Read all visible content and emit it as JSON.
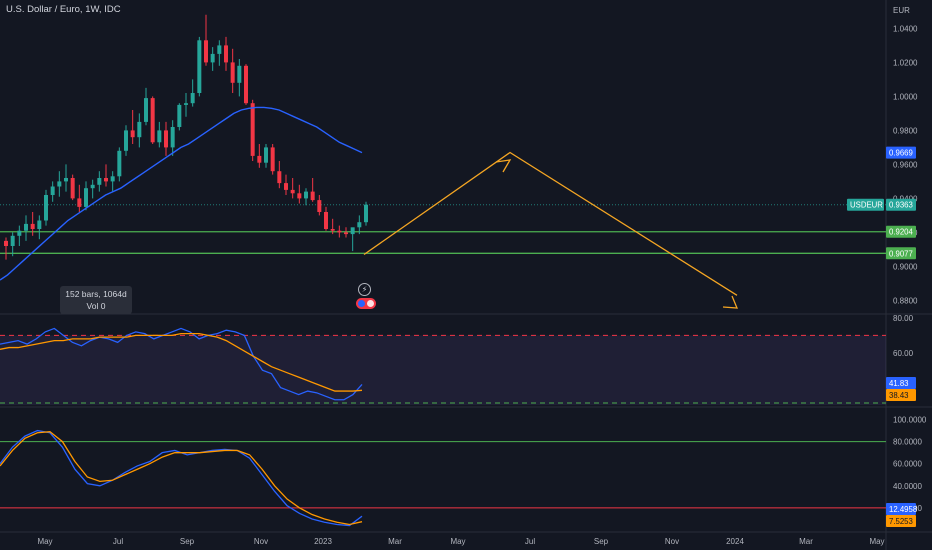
{
  "header": {
    "title": "U.S. Dollar / Euro, 1W, IDC",
    "currency": "EUR"
  },
  "tooltip": {
    "bars": "152 bars, 1064d",
    "vol": "Vol 0"
  },
  "colors": {
    "background": "#131722",
    "up": "#26a69a",
    "down": "#f23645",
    "sma": "#2962ff",
    "rsi": "#2962ff",
    "rsi_ma": "#ff9800",
    "stoch_k": "#2962ff",
    "stoch_d": "#ff9800",
    "support": "#4caf50",
    "projection": "#f5a623",
    "obos": "#f23645"
  },
  "badges": {
    "sma_value": "0.9669",
    "symbol": "USDEUR",
    "last_price": "0.9363",
    "support1": "0.9204",
    "support2": "0.9077",
    "rsi": "41.83",
    "rsi_ma": "38.43",
    "stoch_k": "12.4958",
    "stoch_d": "7.5253"
  },
  "chart_data": [
    {
      "type": "candlestick",
      "title": "U.S. Dollar / Euro, 1W, IDC",
      "price_axis_ticks": [
        "1.0400",
        "1.0200",
        "1.0000",
        "0.9800",
        "0.9600",
        "0.9400",
        "0.9200",
        "0.9000",
        "0.8800"
      ],
      "time_axis_ticks": [
        "May",
        "Jul",
        "Sep",
        "Nov",
        "2023",
        "Mar",
        "May",
        "Jul",
        "Sep",
        "Nov",
        "2024",
        "Mar",
        "May"
      ],
      "ylim": [
        0.872,
        1.052
      ],
      "ohlc": [
        [
          0.915,
          0.917,
          0.904,
          0.912
        ],
        [
          0.912,
          0.92,
          0.906,
          0.918
        ],
        [
          0.918,
          0.924,
          0.912,
          0.921
        ],
        [
          0.921,
          0.93,
          0.915,
          0.925
        ],
        [
          0.925,
          0.932,
          0.918,
          0.922
        ],
        [
          0.922,
          0.93,
          0.916,
          0.927
        ],
        [
          0.927,
          0.945,
          0.924,
          0.942
        ],
        [
          0.942,
          0.95,
          0.938,
          0.947
        ],
        [
          0.947,
          0.956,
          0.941,
          0.95
        ],
        [
          0.95,
          0.96,
          0.944,
          0.952
        ],
        [
          0.952,
          0.954,
          0.939,
          0.94
        ],
        [
          0.94,
          0.948,
          0.932,
          0.935
        ],
        [
          0.935,
          0.95,
          0.933,
          0.946
        ],
        [
          0.946,
          0.951,
          0.94,
          0.948
        ],
        [
          0.948,
          0.956,
          0.944,
          0.952
        ],
        [
          0.952,
          0.96,
          0.947,
          0.95
        ],
        [
          0.95,
          0.956,
          0.944,
          0.953
        ],
        [
          0.953,
          0.97,
          0.95,
          0.968
        ],
        [
          0.968,
          0.983,
          0.965,
          0.98
        ],
        [
          0.98,
          0.992,
          0.972,
          0.976
        ],
        [
          0.976,
          0.99,
          0.97,
          0.985
        ],
        [
          0.985,
          1.005,
          0.983,
          0.999
        ],
        [
          0.999,
          1.0,
          0.972,
          0.973
        ],
        [
          0.973,
          0.985,
          0.97,
          0.98
        ],
        [
          0.98,
          0.985,
          0.965,
          0.97
        ],
        [
          0.97,
          0.986,
          0.965,
          0.982
        ],
        [
          0.982,
          0.996,
          0.98,
          0.995
        ],
        [
          0.995,
          1.002,
          0.988,
          0.996
        ],
        [
          0.996,
          1.01,
          0.994,
          1.002
        ],
        [
          1.002,
          1.035,
          1.0,
          1.033
        ],
        [
          1.033,
          1.048,
          1.018,
          1.02
        ],
        [
          1.02,
          1.029,
          1.015,
          1.025
        ],
        [
          1.025,
          1.033,
          1.018,
          1.03
        ],
        [
          1.03,
          1.035,
          1.015,
          1.02
        ],
        [
          1.02,
          1.028,
          1.002,
          1.008
        ],
        [
          1.008,
          1.022,
          1.0,
          1.018
        ],
        [
          1.018,
          1.019,
          0.995,
          0.996
        ],
        [
          0.996,
          0.998,
          0.962,
          0.965
        ],
        [
          0.965,
          0.972,
          0.958,
          0.961
        ],
        [
          0.961,
          0.972,
          0.958,
          0.97
        ],
        [
          0.97,
          0.972,
          0.954,
          0.956
        ],
        [
          0.956,
          0.962,
          0.946,
          0.949
        ],
        [
          0.949,
          0.954,
          0.942,
          0.945
        ],
        [
          0.945,
          0.952,
          0.94,
          0.943
        ],
        [
          0.943,
          0.948,
          0.937,
          0.94
        ],
        [
          0.94,
          0.946,
          0.936,
          0.944
        ],
        [
          0.944,
          0.952,
          0.938,
          0.939
        ],
        [
          0.939,
          0.942,
          0.93,
          0.932
        ],
        [
          0.932,
          0.935,
          0.921,
          0.922
        ],
        [
          0.922,
          0.928,
          0.919,
          0.921
        ],
        [
          0.921,
          0.924,
          0.917,
          0.92
        ],
        [
          0.92,
          0.923,
          0.917,
          0.919
        ],
        [
          0.919,
          0.922,
          0.909,
          0.923
        ],
        [
          0.923,
          0.93,
          0.919,
          0.926
        ],
        [
          0.926,
          0.938,
          0.924,
          0.9363
        ]
      ],
      "sma": [
        0.892,
        0.895,
        0.899,
        0.903,
        0.907,
        0.911,
        0.915,
        0.919,
        0.923,
        0.927,
        0.93,
        0.933,
        0.936,
        0.939,
        0.942,
        0.944,
        0.946,
        0.949,
        0.952,
        0.955,
        0.958,
        0.961,
        0.964,
        0.967,
        0.97,
        0.972,
        0.975,
        0.978,
        0.981,
        0.984,
        0.987,
        0.99,
        0.992,
        0.993,
        0.9935,
        0.9935,
        0.993,
        0.992,
        0.99,
        0.988,
        0.986,
        0.984,
        0.982,
        0.979,
        0.976,
        0.973,
        0.971,
        0.969,
        0.9669
      ],
      "support_levels": [
        0.9204,
        0.9077
      ],
      "projection": [
        [
          0.907,
          0.967
        ],
        [
          0.967,
          0.883
        ]
      ]
    },
    {
      "type": "line",
      "name": "RSI",
      "axis_ticks": [
        "80.00",
        "60.00"
      ],
      "ylim": [
        30,
        80
      ],
      "bands": [
        70,
        30
      ],
      "series": [
        {
          "values": [
            65,
            66,
            67,
            65,
            68,
            72,
            74,
            70,
            66,
            64,
            67,
            69,
            68,
            66,
            70,
            72,
            71,
            68,
            70,
            72,
            74,
            72,
            68,
            70,
            71,
            73,
            72,
            70,
            58,
            50,
            48,
            40,
            38,
            36,
            38,
            37,
            35,
            33,
            33,
            36,
            41.83
          ]
        },
        {
          "values": [
            62,
            63,
            63,
            64,
            65,
            66,
            67,
            67,
            68,
            68,
            68,
            69,
            69,
            69,
            69,
            70,
            70,
            70,
            70,
            70,
            71,
            71,
            71,
            70,
            69,
            67,
            64,
            61,
            58,
            55,
            52,
            50,
            48,
            46,
            44,
            42,
            40,
            38,
            38,
            38,
            38.43
          ]
        }
      ]
    },
    {
      "type": "line",
      "name": "Stochastic",
      "axis_ticks": [
        "100.0000",
        "80.0000",
        "60.0000",
        "40.0000",
        "20.0000"
      ],
      "ylim": [
        0,
        105
      ],
      "bands": [
        80,
        20
      ],
      "series": [
        {
          "values": [
            60,
            75,
            85,
            90,
            88,
            75,
            55,
            42,
            40,
            45,
            52,
            58,
            62,
            70,
            72,
            68,
            70,
            72,
            73,
            72,
            65,
            50,
            35,
            22,
            15,
            10,
            7,
            5,
            4,
            12.4958
          ]
        },
        {
          "values": [
            58,
            72,
            83,
            88,
            89,
            80,
            62,
            48,
            44,
            45,
            50,
            55,
            60,
            66,
            70,
            70,
            70,
            71,
            72,
            72,
            68,
            55,
            40,
            28,
            20,
            14,
            10,
            7,
            5,
            7.5253
          ]
        }
      ]
    }
  ]
}
